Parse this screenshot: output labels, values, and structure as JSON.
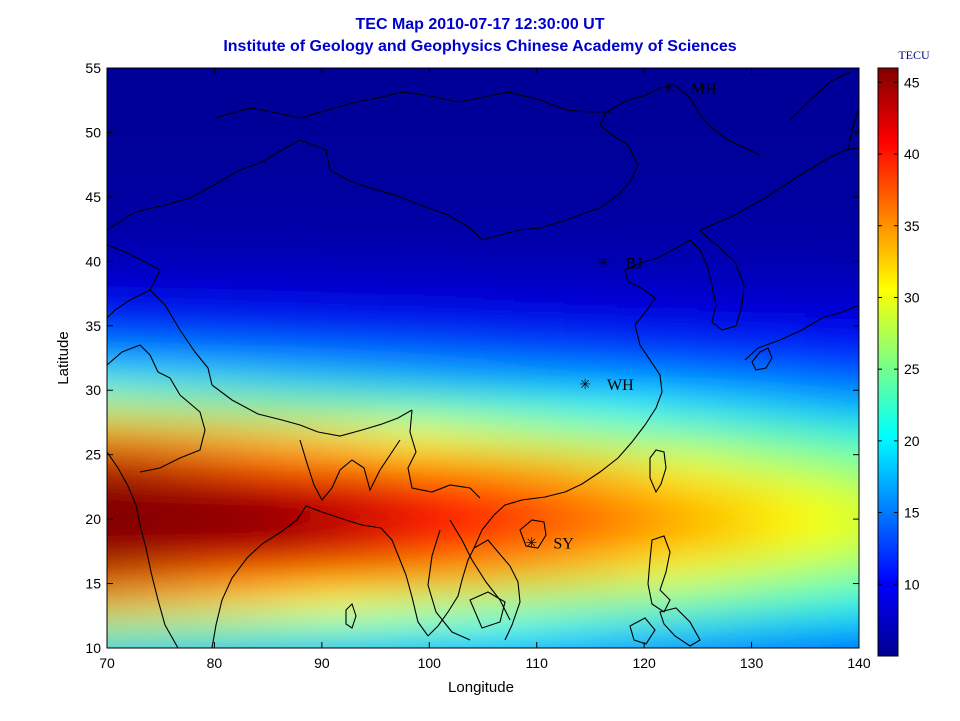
{
  "title": "TEC Map 2010-07-17 12:30:00 UT",
  "subtitle": "Institute of Geology and Geophysics Chinese Academy of Sciences",
  "x_axis": {
    "label": "Longitude",
    "ticks": [
      "70",
      "80",
      "90",
      "100",
      "110",
      "120",
      "130",
      "140"
    ]
  },
  "y_axis": {
    "label": "Latitude",
    "ticks": [
      "55",
      "50",
      "45",
      "40",
      "35",
      "30",
      "25",
      "20",
      "15",
      "10"
    ]
  },
  "colorbar": {
    "unit": "TECU",
    "ticks": [
      "45",
      "40",
      "35",
      "30",
      "25",
      "20",
      "15",
      "10"
    ]
  },
  "stations": [
    {
      "code": "MH",
      "lon": 122.3,
      "lat": 53.5
    },
    {
      "code": "BJ",
      "lon": 116.2,
      "lat": 39.9
    },
    {
      "code": "WH",
      "lon": 114.5,
      "lat": 30.5
    },
    {
      "code": "SY",
      "lon": 109.5,
      "lat": 18.2
    }
  ],
  "chart_data": {
    "type": "heatmap",
    "title": "TEC Map 2010-07-17 12:30:00 UT",
    "subtitle": "Institute of Geology and Geophysics Chinese Academy of Sciences",
    "xlabel": "Longitude",
    "ylabel": "Latitude",
    "xlim": [
      70,
      140
    ],
    "ylim": [
      10,
      55
    ],
    "clim": [
      5,
      46
    ],
    "colorbar_label": "TECU",
    "colormap": "jet",
    "approx_values": [
      {
        "lon": 72,
        "lat": 20,
        "tec": 45
      },
      {
        "lon": 90,
        "lat": 19,
        "tec": 40
      },
      {
        "lon": 110,
        "lat": 20,
        "tec": 35
      },
      {
        "lon": 125,
        "lat": 20,
        "tec": 29
      },
      {
        "lon": 100,
        "lat": 15,
        "tec": 31
      },
      {
        "lon": 115,
        "lat": 30,
        "tec": 20
      },
      {
        "lon": 115,
        "lat": 40,
        "tec": 11
      },
      {
        "lon": 100,
        "lat": 50,
        "tec": 8
      },
      {
        "lon": 135,
        "lat": 50,
        "tec": 7
      }
    ]
  }
}
